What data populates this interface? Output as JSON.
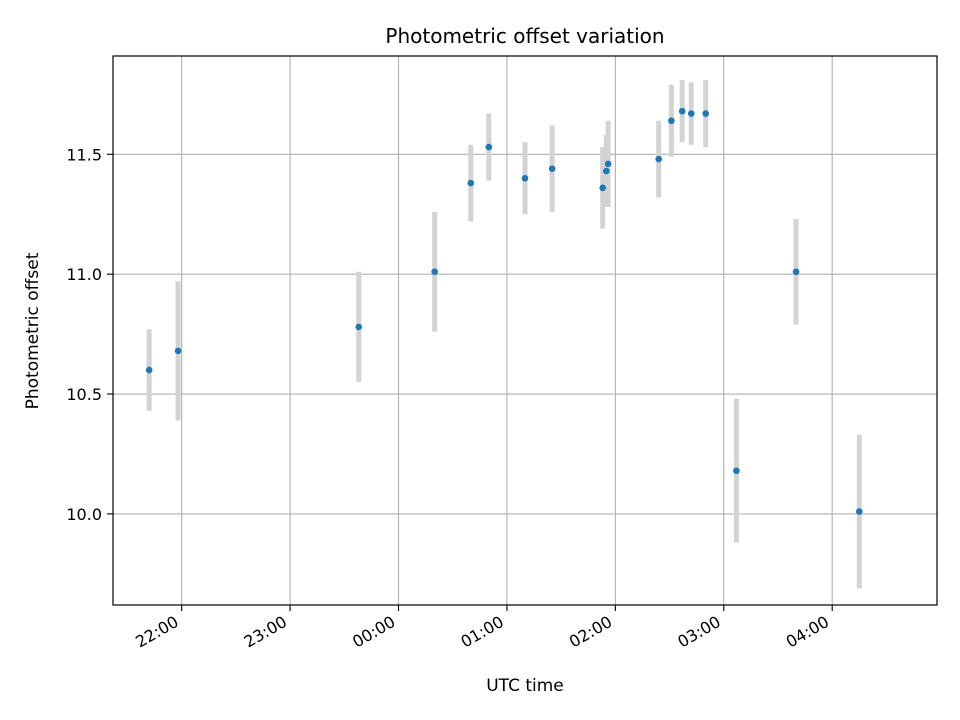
{
  "chart_data": {
    "type": "scatter",
    "title": "Photometric offset variation",
    "xlabel": "UTC time",
    "ylabel": "Photometric offset",
    "x_tick_labels": [
      "22:00",
      "23:00",
      "00:00",
      "01:00",
      "02:00",
      "03:00",
      "04:00"
    ],
    "y_tick_labels": [
      "10.0",
      "10.5",
      "11.0",
      "11.5"
    ],
    "y_ticks": [
      10.0,
      10.5,
      11.0,
      11.5
    ],
    "xlim": [
      "21:22",
      "04:58"
    ],
    "ylim": [
      9.62,
      11.91
    ],
    "grid": true,
    "legend": "none",
    "marker_color": "#1f77b4",
    "errorbar_color": "#d3d3d3",
    "points": [
      {
        "time": "21:42",
        "y": 10.6,
        "yerr": 0.17
      },
      {
        "time": "21:58",
        "y": 10.68,
        "yerr": 0.29
      },
      {
        "time": "23:38",
        "y": 10.78,
        "yerr": 0.23
      },
      {
        "time": "00:20",
        "y": 11.01,
        "yerr": 0.25
      },
      {
        "time": "00:40",
        "y": 11.38,
        "yerr": 0.16
      },
      {
        "time": "00:50",
        "y": 11.53,
        "yerr": 0.14
      },
      {
        "time": "01:10",
        "y": 11.4,
        "yerr": 0.15
      },
      {
        "time": "01:25",
        "y": 11.44,
        "yerr": 0.18
      },
      {
        "time": "01:53",
        "y": 11.36,
        "yerr": 0.17
      },
      {
        "time": "01:55",
        "y": 11.43,
        "yerr": 0.15
      },
      {
        "time": "01:56",
        "y": 11.46,
        "yerr": 0.18
      },
      {
        "time": "02:24",
        "y": 11.48,
        "yerr": 0.16
      },
      {
        "time": "02:31",
        "y": 11.64,
        "yerr": 0.15
      },
      {
        "time": "02:37",
        "y": 11.68,
        "yerr": 0.13
      },
      {
        "time": "02:42",
        "y": 11.67,
        "yerr": 0.13
      },
      {
        "time": "02:50",
        "y": 11.67,
        "yerr": 0.14
      },
      {
        "time": "03:07",
        "y": 10.18,
        "yerr": 0.3
      },
      {
        "time": "03:40",
        "y": 11.01,
        "yerr": 0.22
      },
      {
        "time": "04:15",
        "y": 10.01,
        "yerr": 0.32
      }
    ]
  }
}
